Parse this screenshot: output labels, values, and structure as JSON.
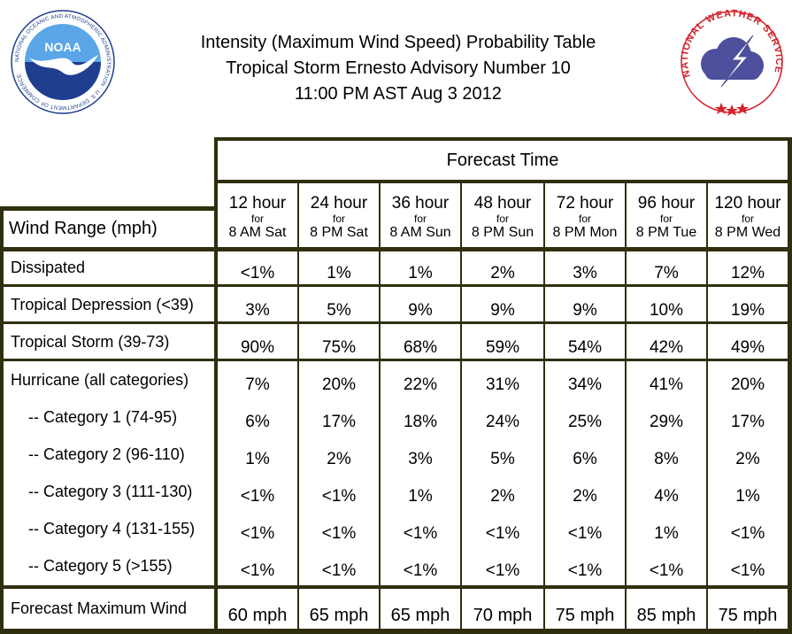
{
  "header": {
    "title_lines": [
      "Intensity (Maximum Wind Speed) Probability Table",
      "Tropical Storm Ernesto Advisory Number 10",
      "11:00 PM AST Aug 3 2012"
    ]
  },
  "logos": {
    "noaa": {
      "text": "NOAA",
      "ring_text": "NATIONAL OCEANIC AND ATMOSPHERIC ADMINISTRATION · U.S. DEPARTMENT OF COMMERCE",
      "colors": {
        "blue": "#1f3e8f",
        "sky": "#5aa6e6"
      }
    },
    "nws": {
      "ring_text": "NATIONAL WEATHER SERVICE",
      "colors": {
        "red": "#d2232a",
        "cloud": "#4d4f9c"
      }
    }
  },
  "table": {
    "forecast_time_label": "Forecast Time",
    "wind_range_label": "Wind Range (mph)",
    "for_word": "for",
    "columns": [
      {
        "hours": "12 hour",
        "valid": "8 AM Sat"
      },
      {
        "hours": "24 hour",
        "valid": "8 PM Sat"
      },
      {
        "hours": "36 hour",
        "valid": "8 AM Sun"
      },
      {
        "hours": "48 hour",
        "valid": "8 PM Sun"
      },
      {
        "hours": "72 hour",
        "valid": "8 PM Mon"
      },
      {
        "hours": "96 hour",
        "valid": "8 PM Tue"
      },
      {
        "hours": "120 hour",
        "valid": "8 PM Wed"
      }
    ],
    "rows": [
      {
        "label": "Dissipated",
        "values": [
          "<1%",
          "1%",
          "1%",
          "2%",
          "3%",
          "7%",
          "12%"
        ]
      },
      {
        "label": "Tropical Depression (<39)",
        "values": [
          "3%",
          "5%",
          "9%",
          "9%",
          "9%",
          "10%",
          "19%"
        ]
      },
      {
        "label": "Tropical Storm (39-73)",
        "values": [
          "90%",
          "75%",
          "68%",
          "59%",
          "54%",
          "42%",
          "49%"
        ]
      },
      {
        "label": "Hurricane (all categories)",
        "values": [
          "7%",
          "20%",
          "22%",
          "31%",
          "34%",
          "41%",
          "20%"
        ]
      },
      {
        "label": "-- Category 1 (74-95)",
        "values": [
          "6%",
          "17%",
          "18%",
          "24%",
          "25%",
          "29%",
          "17%"
        ]
      },
      {
        "label": "-- Category 2 (96-110)",
        "values": [
          "1%",
          "2%",
          "3%",
          "5%",
          "6%",
          "8%",
          "2%"
        ]
      },
      {
        "label": "-- Category 3 (111-130)",
        "values": [
          "<1%",
          "<1%",
          "1%",
          "2%",
          "2%",
          "4%",
          "1%"
        ]
      },
      {
        "label": "-- Category 4 (131-155)",
        "values": [
          "<1%",
          "<1%",
          "<1%",
          "<1%",
          "<1%",
          "1%",
          "<1%"
        ]
      },
      {
        "label": "-- Category 5 (>155)",
        "values": [
          "<1%",
          "<1%",
          "<1%",
          "<1%",
          "<1%",
          "<1%",
          "<1%"
        ]
      }
    ],
    "max_wind": {
      "label": "Forecast Maximum Wind",
      "values": [
        "60 mph",
        "65 mph",
        "65 mph",
        "70 mph",
        "75 mph",
        "85 mph",
        "75 mph"
      ]
    },
    "colors": {
      "rule": "#2f2f0f"
    }
  }
}
